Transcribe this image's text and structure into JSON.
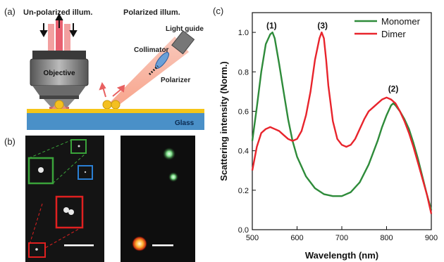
{
  "panel_a": {
    "label": "(a)",
    "unpolarized_text": "Un-polarized illum.",
    "polarized_text": "Polarized illum.",
    "objective_text": "Objective",
    "collimator_text": "Collimator",
    "polarizer_text": "Polarizer",
    "light_guide_text": "Light guide",
    "glass_text": "Glass"
  },
  "panel_b": {
    "label": "(b)"
  },
  "panel_c": {
    "label": "(c)"
  },
  "colors": {
    "monomer": "#2e8b3a",
    "dimer": "#e8242c",
    "gold_film": "#f5c518",
    "glass": "#4a90c8",
    "box_green": "#3aa33a",
    "box_blue": "#2a7fd4",
    "box_red": "#e02020"
  },
  "chart_data": {
    "type": "line",
    "xlabel": "Wavelength (nm)",
    "ylabel": "Scattering intensity (Norm.)",
    "xlim": [
      500,
      900
    ],
    "ylim": [
      0,
      1.1
    ],
    "xticks": [
      "500",
      "600",
      "700",
      "800",
      "900"
    ],
    "yticks": [
      "0.0",
      "0.2",
      "0.4",
      "0.6",
      "0.8",
      "1.0"
    ],
    "grid": false,
    "legend_position": "top-right",
    "annotations": [
      {
        "text": "(1)",
        "x": 543,
        "y": 1.02
      },
      {
        "text": "(3)",
        "x": 657,
        "y": 1.02
      },
      {
        "text": "(2)",
        "x": 815,
        "y": 0.7
      }
    ],
    "series": [
      {
        "name": "Monomer",
        "x": [
          500,
          510,
          520,
          530,
          540,
          545,
          550,
          560,
          570,
          580,
          590,
          600,
          620,
          640,
          660,
          680,
          700,
          720,
          740,
          760,
          780,
          790,
          800,
          810,
          815,
          820,
          830,
          840,
          850,
          860,
          870,
          880,
          890,
          900
        ],
        "y": [
          0.45,
          0.62,
          0.8,
          0.94,
          0.99,
          1.0,
          0.97,
          0.84,
          0.7,
          0.56,
          0.45,
          0.37,
          0.27,
          0.21,
          0.18,
          0.17,
          0.17,
          0.19,
          0.24,
          0.33,
          0.45,
          0.52,
          0.58,
          0.63,
          0.64,
          0.63,
          0.6,
          0.56,
          0.51,
          0.44,
          0.36,
          0.27,
          0.18,
          0.1
        ]
      },
      {
        "name": "Dimer",
        "x": [
          500,
          510,
          520,
          530,
          540,
          550,
          560,
          570,
          580,
          590,
          600,
          610,
          620,
          630,
          640,
          650,
          655,
          660,
          665,
          670,
          680,
          690,
          700,
          710,
          720,
          730,
          740,
          750,
          760,
          770,
          780,
          790,
          800,
          810,
          820,
          830,
          840,
          850,
          860,
          870,
          880,
          890,
          900
        ],
        "y": [
          0.3,
          0.42,
          0.49,
          0.51,
          0.52,
          0.51,
          0.5,
          0.48,
          0.46,
          0.45,
          0.46,
          0.5,
          0.58,
          0.7,
          0.86,
          0.97,
          1.0,
          0.97,
          0.86,
          0.73,
          0.55,
          0.46,
          0.43,
          0.42,
          0.43,
          0.46,
          0.51,
          0.56,
          0.6,
          0.62,
          0.64,
          0.66,
          0.67,
          0.66,
          0.64,
          0.6,
          0.55,
          0.49,
          0.42,
          0.34,
          0.26,
          0.18,
          0.08
        ]
      }
    ]
  }
}
